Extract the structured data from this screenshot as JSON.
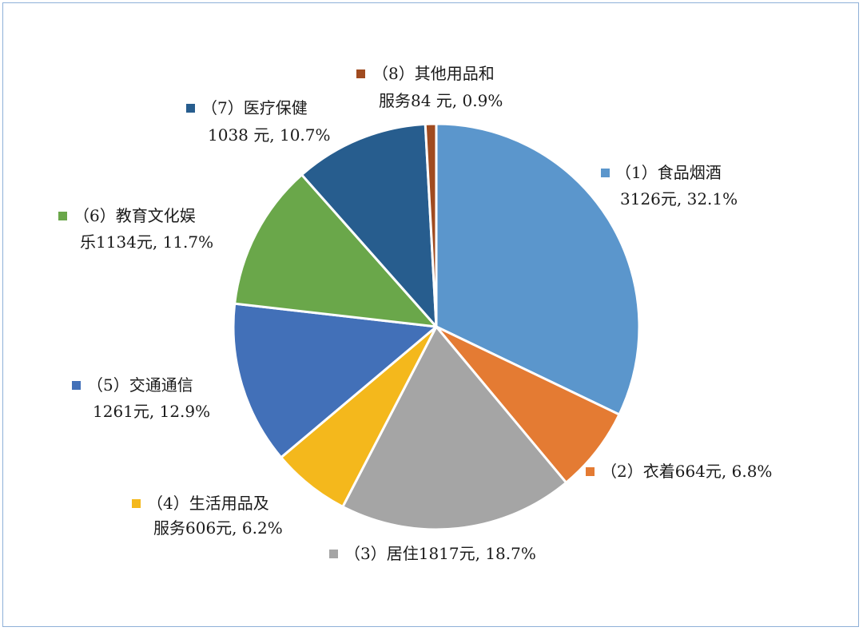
{
  "chart_data": {
    "type": "pie",
    "title": "",
    "slices": [
      {
        "label_line1": "（1）食品烟酒",
        "label_line2": "3126元, 32.1%",
        "value": 3126,
        "percent": 32.1,
        "color": "#5b96cc"
      },
      {
        "label_line1": "（2）衣着664元, 6.8%",
        "label_line2": "",
        "value": 664,
        "percent": 6.8,
        "color": "#e47b33"
      },
      {
        "label_line1": "（3）居住1817元, 18.7%",
        "label_line2": "",
        "value": 1817,
        "percent": 18.7,
        "color": "#a5a5a5"
      },
      {
        "label_line1": "（4）生活用品及",
        "label_line2": "服务606元, 6.2%",
        "value": 606,
        "percent": 6.2,
        "color": "#f4b81c"
      },
      {
        "label_line1": "（5）交通通信",
        "label_line2": "1261元, 12.9%",
        "value": 1261,
        "percent": 12.9,
        "color": "#4270b8"
      },
      {
        "label_line1": "（6）教育文化娱",
        "label_line2": "乐1134元, 11.7%",
        "value": 1134,
        "percent": 11.7,
        "color": "#6aa74a"
      },
      {
        "label_line1": "（7）医疗保健",
        "label_line2": "1038 元, 10.7%",
        "value": 1038,
        "percent": 10.7,
        "color": "#275d8e"
      },
      {
        "label_line1": "（8）其他用品和",
        "label_line2": "服务84 元, 0.9%",
        "value": 84,
        "percent": 0.9,
        "color": "#a04b20"
      }
    ]
  }
}
